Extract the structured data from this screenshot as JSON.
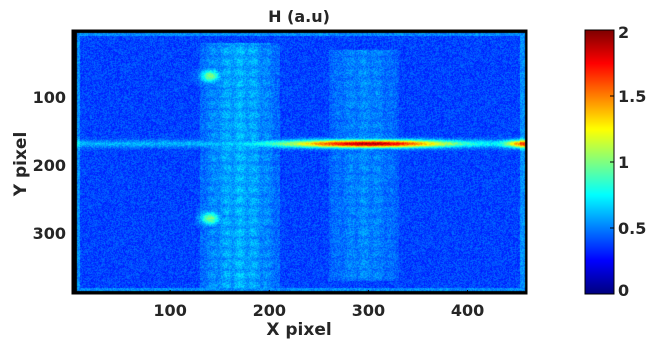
{
  "chart_data": {
    "type": "heatmap",
    "title": "H (a.u)",
    "xlabel": "X pixel",
    "ylabel": "Y pixel",
    "xlim": [
      1,
      460
    ],
    "ylim": [
      1,
      390
    ],
    "y_reversed": true,
    "x_ticks": [
      100,
      200,
      300,
      400
    ],
    "x_tick_labels": [
      "100",
      "200",
      "300",
      "400"
    ],
    "y_ticks": [
      100,
      200,
      300
    ],
    "y_tick_labels": [
      "100",
      "200",
      "300"
    ],
    "colorbar": {
      "colormap": "jet",
      "clim": [
        0,
        2
      ],
      "ticks": [
        0,
        0.5,
        1,
        1.5,
        2
      ],
      "tick_labels": [
        "0",
        "0.5",
        "1",
        "1.5",
        "2"
      ]
    },
    "background_value": 0.38,
    "features": [
      {
        "kind": "horizontal-band",
        "y": 168,
        "x_range": [
          0,
          460
        ],
        "peak_x": 300,
        "peak_value": 1.9,
        "base_value": 0.6
      },
      {
        "kind": "spot",
        "x": 140,
        "y": 68,
        "value": 1.0
      },
      {
        "kind": "spot",
        "x": 140,
        "y": 278,
        "value": 1.0
      },
      {
        "kind": "hex-pattern-region",
        "x_range": [
          130,
          210
        ],
        "y_range": [
          20,
          380
        ],
        "value": 0.65
      },
      {
        "kind": "hex-pattern-region",
        "x_range": [
          260,
          330
        ],
        "y_range": [
          30,
          370
        ],
        "value": 0.55
      }
    ]
  }
}
